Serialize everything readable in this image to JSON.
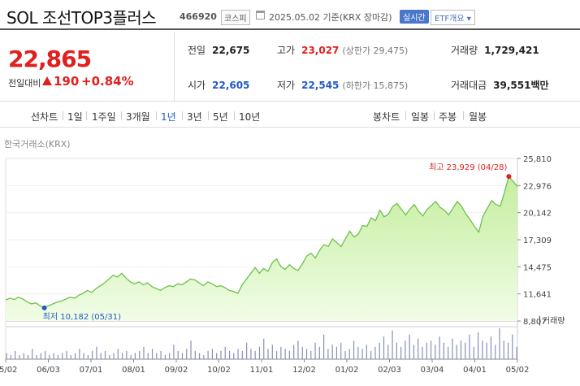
{
  "header": {
    "title": "SOL 조선TOP3플러스",
    "code": "466920",
    "market": "코스피",
    "date_text": "2025.05.02 기준(KRX 장마감)",
    "realtime_label": "실시간",
    "etf_label": "ETF개요 ▾"
  },
  "price": {
    "current": "22,865",
    "change_label": "전일대비",
    "change": "190",
    "change_pct": "+0.84%"
  },
  "stats": {
    "prev_close": {
      "label": "전일",
      "value": "22,675"
    },
    "high": {
      "label": "고가",
      "value": "23,027",
      "sub": "(상한가 29,475)"
    },
    "volume": {
      "label": "거래량",
      "value": "1,729,421"
    },
    "open": {
      "label": "시가",
      "value": "22,605"
    },
    "low": {
      "label": "저가",
      "value": "22,545",
      "sub": "(하한가 15,875)"
    },
    "trade_value": {
      "label": "거래대금",
      "value": "39,551",
      "unit": "백만"
    }
  },
  "tabs": {
    "line_label": "선차트",
    "line_periods": [
      "1일",
      "1주일",
      "3개월",
      "1년",
      "3년",
      "5년",
      "10년"
    ],
    "active_period": "1년",
    "candle_label": "봉차트",
    "candle_periods": [
      "일봉",
      "주봉",
      "월봉"
    ]
  },
  "exchange_label": "한국거래소(KRX)",
  "chart_data": {
    "type": "area",
    "x_ticks": [
      "05/02",
      "06/03",
      "07/01",
      "08/01",
      "09/02",
      "10/02",
      "11/01",
      "12/02",
      "01/02",
      "02/03",
      "03/04",
      "04/01",
      "05/02"
    ],
    "y_ticks": [
      "25,810",
      "22,976",
      "20,142",
      "17,309",
      "14,475",
      "11,641",
      "8,807"
    ],
    "ylim": [
      8807,
      25810
    ],
    "high_annotation": "최고 23,929 (04/28)",
    "low_annotation": "최저 10,182 (05/31)",
    "volume_legend": "거래량",
    "colors": {
      "line": "#6cc24a",
      "fill_top": "#c5ee9f",
      "fill_bottom": "#f1fce6",
      "high": "#e0201f",
      "low": "#1f5bc4",
      "volume": "#8890b8"
    },
    "prices": [
      11000,
      11200,
      11050,
      11300,
      11100,
      10800,
      10600,
      10700,
      10400,
      10182,
      10400,
      10600,
      10800,
      10900,
      11100,
      11300,
      11200,
      11500,
      11700,
      12000,
      11800,
      12200,
      12500,
      12800,
      13200,
      13600,
      13400,
      13800,
      13300,
      12900,
      12700,
      12900,
      12600,
      12800,
      12400,
      12200,
      12000,
      12300,
      12500,
      12400,
      12700,
      12600,
      12900,
      13200,
      13100,
      12800,
      12500,
      12900,
      12700,
      12400,
      12500,
      12300,
      12000,
      11900,
      11700,
      12600,
      13200,
      13800,
      14400,
      13800,
      14300,
      14000,
      14900,
      15300,
      14500,
      14200,
      14700,
      14300,
      14100,
      14800,
      15600,
      15900,
      15400,
      16200,
      16800,
      16600,
      17400,
      17000,
      16600,
      17400,
      18200,
      17600,
      17900,
      18800,
      18700,
      19600,
      19300,
      20400,
      19700,
      20000,
      20800,
      21100,
      20500,
      19900,
      20500,
      21000,
      20300,
      19800,
      20500,
      20900,
      21300,
      20700,
      20400,
      19900,
      20600,
      21300,
      20800,
      20000,
      19400,
      18700,
      18100,
      19800,
      20600,
      21400,
      21000,
      20800,
      22300,
      23929,
      23400,
      22865
    ],
    "volume": [
      3,
      2,
      4,
      2,
      3,
      2,
      5,
      2,
      3,
      4,
      2,
      3,
      2,
      3,
      4,
      2,
      3,
      5,
      3,
      2,
      4,
      6,
      3,
      4,
      2,
      3,
      5,
      3,
      4,
      2,
      3,
      4,
      6,
      3,
      5,
      3,
      4,
      2,
      3,
      7,
      4,
      3,
      5,
      9,
      4,
      3,
      2,
      4,
      5,
      3,
      4,
      6,
      4,
      3,
      5,
      4,
      8,
      5,
      4,
      6,
      10,
      5,
      7,
      4,
      6,
      5,
      4,
      7,
      9,
      6,
      5,
      4,
      8,
      6,
      12,
      5,
      7,
      6,
      8,
      4,
      5,
      9,
      6,
      5,
      7,
      4,
      6,
      8,
      11,
      7,
      14,
      8,
      6,
      9,
      12,
      7,
      10,
      6,
      8,
      9,
      7,
      11,
      8,
      6,
      10,
      7,
      9,
      8,
      12,
      6,
      13,
      9,
      8,
      11,
      7,
      15,
      9,
      8,
      12,
      6
    ]
  }
}
